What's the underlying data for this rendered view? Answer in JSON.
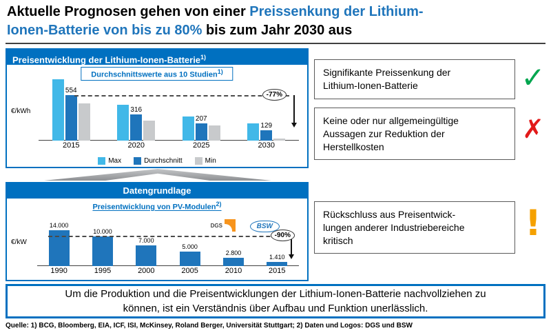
{
  "colors": {
    "accent_blue": "#0070C0",
    "bar_dark_blue": "#1F75BB",
    "bar_light_blue": "#41B8E8",
    "bar_gray": "#C8CACC",
    "check_green": "#00A64F",
    "cross_red": "#E21A1A",
    "warn_orange": "#F5A100"
  },
  "title": {
    "line1": [
      {
        "text": "Aktuelle Prognosen gehen von einer "
      },
      {
        "text": "Preissenkung der Lithium-",
        "highlight": true
      }
    ],
    "line2": [
      {
        "text": "Ionen-Batterie von bis zu 80%",
        "highlight": true
      },
      {
        "text": " bis zum Jahr 2030 aus"
      }
    ]
  },
  "battery_box": {
    "header_text": "Preisentwicklung der Lithium-Ionen-Batterie",
    "header_sup": "1)"
  },
  "data_box": {
    "header_text": "Datengrundlage"
  },
  "right_notes": [
    {
      "text": "Signifikante Preissenkung der Lithium-Ionen-Batterie",
      "icon": "check",
      "glyph": "✓",
      "color": "#00A64F"
    },
    {
      "text": "Keine oder nur allgemeingültige Aussagen zur Reduktion der Herstellkosten",
      "icon": "cross",
      "glyph": "✗",
      "color": "#E21A1A"
    },
    {
      "text": "Rückschluss aus Preisentwick-lungen anderer Industriebereiche kritisch",
      "icon": "exclamation",
      "glyph": "!",
      "color": "#F5A100"
    }
  ],
  "statement": "Um die Produktion und die Preisentwicklungen der Lithium-Ionen-Batterie nachvollziehen zu können, ist ein Verständnis über Aufbau und Funktion unerlässlich.",
  "footer": "Quelle: 1) BCG, Bloomberg, EIA, ICF, ISI, McKinsey, Roland Berger, Universität Stuttgart; 2) Daten und Logos: DGS und BSW",
  "chart_data": [
    {
      "type": "bar",
      "title": "Durchschnittswerte aus 10 Studien",
      "title_sup": "1)",
      "ylabel": "€/kWh",
      "categories": [
        "2015",
        "2020",
        "2025",
        "2030"
      ],
      "series": [
        {
          "name": "Max",
          "color": "#41B8E8",
          "values": [
            740,
            430,
            290,
            205
          ]
        },
        {
          "name": "Durchschnitt",
          "color": "#1F75BB",
          "values": [
            554,
            316,
            207,
            129
          ],
          "labels": [
            "554",
            "316",
            "207",
            "129"
          ]
        },
        {
          "name": "Min",
          "color": "#C8CACC",
          "values": [
            450,
            245,
            185,
            28
          ]
        }
      ],
      "ylim": [
        0,
        800
      ],
      "annotation": "-77%",
      "legend_position": "bottom",
      "grid": false
    },
    {
      "type": "bar",
      "title": "Preisentwicklung von PV-Modulen",
      "title_sup": "2)",
      "ylabel": "€/kW",
      "categories": [
        "1990",
        "1995",
        "2000",
        "2005",
        "2010",
        "2015"
      ],
      "series": [
        {
          "name": "PV-Modulpreis",
          "color": "#1F75BB",
          "values": [
            14000,
            10000,
            7000,
            5000,
            2800,
            1410
          ],
          "labels": [
            "14.000",
            "10.000",
            "7.000",
            "5.000",
            "2.800",
            "1.410"
          ]
        }
      ],
      "ylim": [
        0,
        15000
      ],
      "annotation": "-90%",
      "logos": [
        "DGS",
        "BSW"
      ],
      "grid": false
    }
  ]
}
